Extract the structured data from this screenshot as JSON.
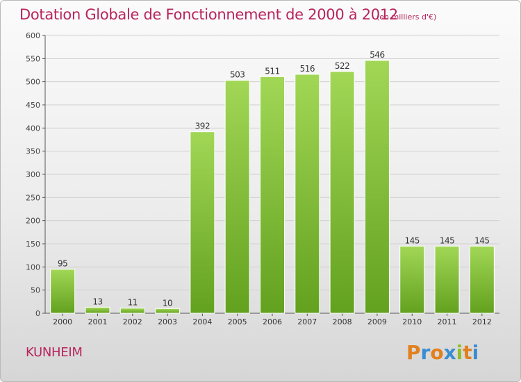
{
  "chart_data": {
    "type": "bar",
    "title": "Dotation Globale de Fonctionnement de 2000 à 2012",
    "subtitle": "(en milliers d'€)",
    "categories": [
      "2000",
      "2001",
      "2002",
      "2003",
      "2004",
      "2005",
      "2006",
      "2007",
      "2008",
      "2009",
      "2010",
      "2011",
      "2012"
    ],
    "values": [
      95,
      13,
      11,
      10,
      392,
      503,
      511,
      516,
      522,
      546,
      145,
      145,
      145
    ],
    "value_labels": [
      "95",
      "13",
      "11",
      "10",
      "392",
      "503",
      "511",
      "516",
      "522",
      "546",
      "145",
      "145",
      "145"
    ],
    "ylim": [
      0,
      600
    ],
    "yticks": [
      "0",
      "50",
      "100",
      "150",
      "200",
      "250",
      "300",
      "350",
      "400",
      "450",
      "500",
      "550",
      "600"
    ],
    "grid": "horizontal",
    "legend": "none",
    "bar_color": "#8cc83c"
  },
  "footer": {
    "commune": "KUNHEIM",
    "logo_text": "Proxiti"
  }
}
